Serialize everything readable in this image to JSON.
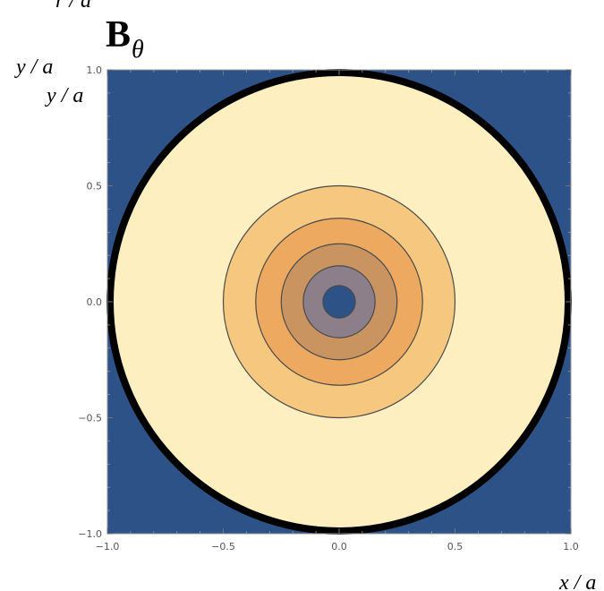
{
  "chart_data": {
    "type": "contour",
    "title": "B",
    "title_subscript": "θ",
    "xlabel": "x / a",
    "ylabel": "y / a",
    "xlim": [
      -1.0,
      1.0
    ],
    "ylim": [
      -1.0,
      1.0
    ],
    "x_ticks": [
      "−1.0",
      "−0.5",
      "0.0",
      "0.5",
      "1.0"
    ],
    "y_ticks": [
      "−1.0",
      "−0.5",
      "0.0",
      "0.5",
      "1.0"
    ],
    "x_tick_values": [
      -1.0,
      -0.5,
      0.0,
      0.5,
      1.0
    ],
    "y_tick_values": [
      -1.0,
      -0.5,
      0.0,
      0.5,
      1.0
    ],
    "background_color": "#2c5288",
    "boundary_radius": 1.0,
    "boundary_color": "#000000",
    "contour_radii": [
      0.5,
      0.36,
      0.25,
      0.155,
      0.07
    ],
    "contour_colors": [
      "#f6c87f",
      "#eda95f",
      "#c99460",
      "#8d7f8a",
      "#2c5288"
    ],
    "outer_fill_color": "#fdefc0",
    "grid": false
  },
  "labels": {
    "top_left_partial": "r / a",
    "y_label_1": "y / a",
    "y_label_2": "y / a"
  }
}
